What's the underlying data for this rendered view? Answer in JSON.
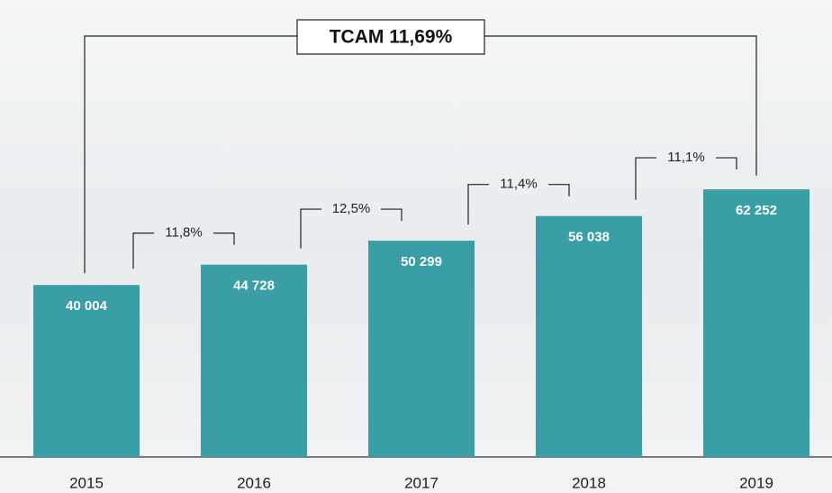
{
  "chart_data": {
    "type": "bar",
    "categories": [
      "2015",
      "2016",
      "2017",
      "2018",
      "2019"
    ],
    "values": [
      40004,
      44728,
      50299,
      56038,
      62252
    ],
    "value_labels": [
      "40 004",
      "44 728",
      "50 299",
      "56 038",
      "62 252"
    ],
    "color": "#3a9ea7",
    "ylim": [
      0,
      100000
    ],
    "growth_labels": [
      "11,8%",
      "12,5%",
      "11,4%",
      "11,1%"
    ],
    "cagr_label": "TCAM 11,69%"
  }
}
